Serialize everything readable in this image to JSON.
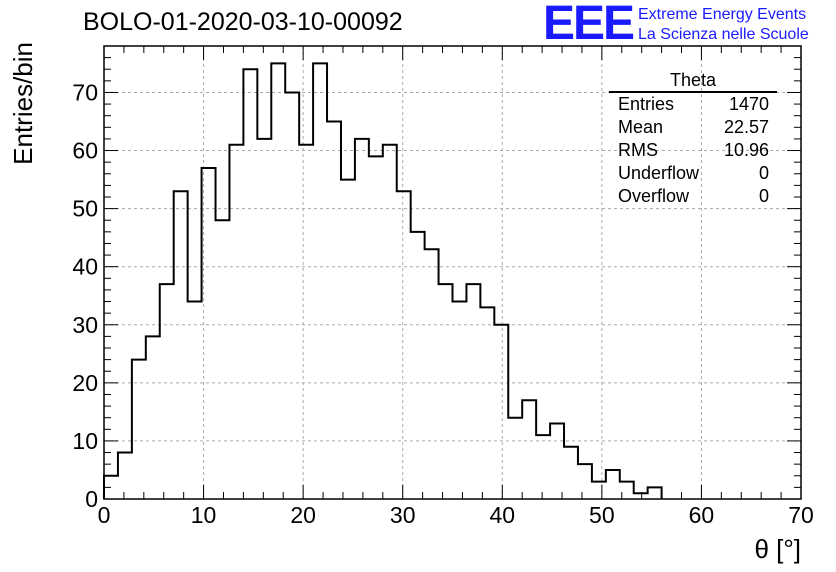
{
  "header": {
    "run_title": "BOLO-01-2020-03-10-00092",
    "logo": {
      "mark": "EEE",
      "line1": "Extreme Energy Events",
      "line2": "La Scienza nelle Scuole"
    }
  },
  "stats_box": {
    "title": "Theta",
    "rows": [
      {
        "label": "Entries",
        "value": "1470"
      },
      {
        "label": "Mean",
        "value": "22.57"
      },
      {
        "label": "RMS",
        "value": "10.96"
      },
      {
        "label": "Underflow",
        "value": "0"
      },
      {
        "label": "Overflow",
        "value": "0"
      }
    ]
  },
  "colors": {
    "line": "#000000",
    "grid": "#aaaaaa",
    "logo": "#1a1aff"
  },
  "chart_data": {
    "type": "bar",
    "style": "step-histogram",
    "xlabel": "θ [°]",
    "ylabel": "Entries/bin",
    "xlim": [
      0,
      70
    ],
    "ylim": [
      0,
      78
    ],
    "x_ticks": [
      0,
      10,
      20,
      30,
      40,
      50,
      60,
      70
    ],
    "y_ticks": [
      0,
      10,
      20,
      30,
      40,
      50,
      60,
      70
    ],
    "grid": true,
    "bin_width": 1.4,
    "bin_edges_start": 0,
    "values": [
      4,
      8,
      24,
      28,
      37,
      53,
      34,
      57,
      48,
      61,
      74,
      62,
      75,
      70,
      61,
      75,
      65,
      55,
      62,
      59,
      61,
      53,
      46,
      43,
      37,
      34,
      37,
      33,
      30,
      14,
      17,
      11,
      13,
      9,
      6,
      3,
      5,
      3,
      1,
      2
    ]
  }
}
